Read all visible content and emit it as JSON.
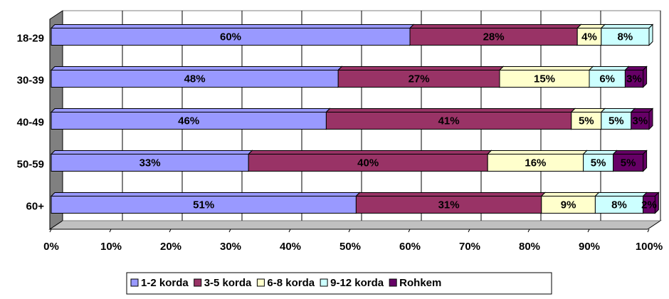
{
  "chart_data": {
    "type": "stacked-bar-horizontal",
    "categories": [
      "18-29",
      "30-39",
      "40-49",
      "50-59",
      "60+"
    ],
    "series": [
      {
        "name": "1-2 korda",
        "color": "#9999ff",
        "values": [
          60,
          48,
          46,
          33,
          51
        ],
        "value_labels": [
          "60%",
          "48%",
          "46%",
          "33%",
          "51%"
        ]
      },
      {
        "name": "3-5 korda",
        "color": "#993366",
        "values": [
          28,
          27,
          41,
          40,
          31
        ],
        "value_labels": [
          "28%",
          "27%",
          "41%",
          "40%",
          "31%"
        ]
      },
      {
        "name": "6-8 korda",
        "color": "#ffffcc",
        "values": [
          4,
          15,
          5,
          16,
          9
        ],
        "value_labels": [
          "4%",
          "15%",
          "5%",
          "16%",
          "9%"
        ]
      },
      {
        "name": "9-12 korda",
        "color": "#ccffff",
        "values": [
          8,
          6,
          5,
          5,
          8
        ],
        "value_labels": [
          "8%",
          "6%",
          "5%",
          "5%",
          "8%"
        ]
      },
      {
        "name": "Rohkem",
        "color": "#660066",
        "values": [
          null,
          3,
          3,
          5,
          2
        ],
        "value_labels": [
          null,
          "3%",
          "3%",
          "5%",
          "2%"
        ]
      }
    ],
    "xlim": [
      0,
      100
    ],
    "xticks": [
      {
        "value": 0,
        "label": "0%"
      },
      {
        "value": 10,
        "label": "10%"
      },
      {
        "value": 20,
        "label": "20%"
      },
      {
        "value": 30,
        "label": "30%"
      },
      {
        "value": 40,
        "label": "40%"
      },
      {
        "value": 50,
        "label": "50%"
      },
      {
        "value": 60,
        "label": "60%"
      },
      {
        "value": 70,
        "label": "70%"
      },
      {
        "value": 80,
        "label": "80%"
      },
      {
        "value": 90,
        "label": "90%"
      },
      {
        "value": 100,
        "label": "100%"
      }
    ],
    "grid": true,
    "legend": "bottom"
  }
}
